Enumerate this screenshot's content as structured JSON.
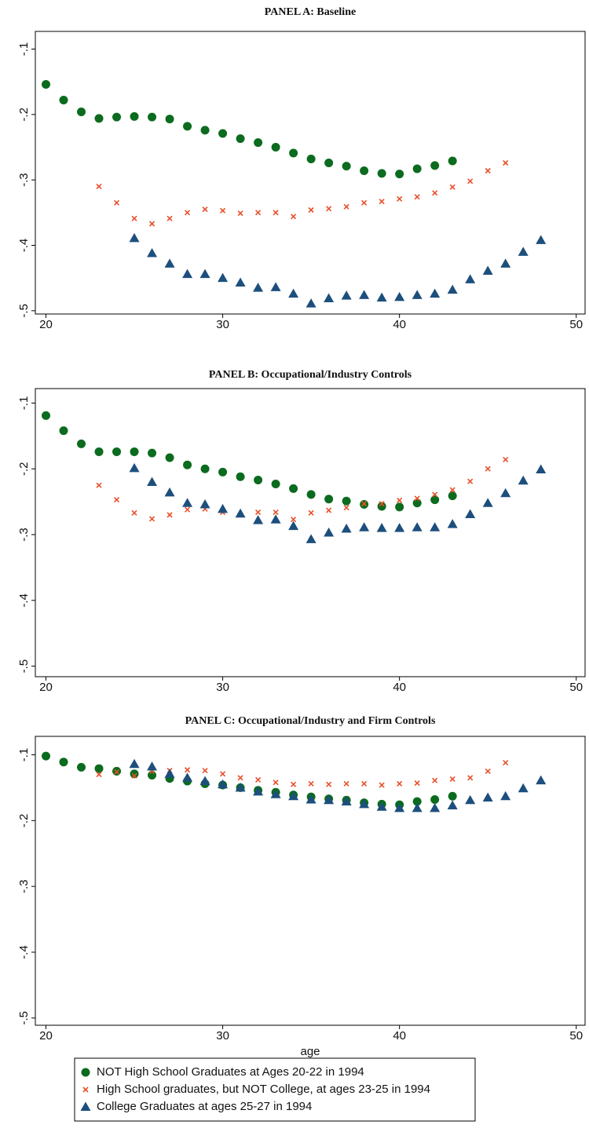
{
  "chart_data": [
    {
      "type": "scatter",
      "title": "PANEL A: Baseline",
      "x": [
        20,
        21,
        22,
        23,
        24,
        25,
        26,
        27,
        28,
        29,
        30,
        31,
        32,
        33,
        34,
        35,
        36,
        37,
        38,
        39,
        40,
        41,
        42,
        43,
        44,
        45,
        46,
        47,
        48
      ],
      "series": [
        {
          "color": "#0b6b1e",
          "marker": "circle",
          "values": [
            -0.154,
            -0.178,
            -0.196,
            -0.206,
            -0.204,
            -0.203,
            -0.204,
            -0.207,
            -0.218,
            -0.224,
            -0.229,
            -0.237,
            -0.243,
            -0.25,
            -0.259,
            -0.268,
            -0.274,
            -0.279,
            -0.286,
            -0.29,
            -0.291,
            -0.283,
            -0.278,
            -0.271,
            null,
            null,
            null,
            null,
            null
          ]
        },
        {
          "color": "#e8502a",
          "marker": "x",
          "values": [
            null,
            null,
            null,
            -0.31,
            -0.335,
            -0.359,
            -0.367,
            -0.359,
            -0.35,
            -0.345,
            -0.347,
            -0.351,
            -0.35,
            -0.35,
            -0.356,
            -0.346,
            -0.344,
            -0.341,
            -0.335,
            -0.333,
            -0.329,
            -0.326,
            -0.32,
            -0.311,
            -0.302,
            -0.286,
            -0.274,
            null,
            null
          ]
        },
        {
          "color": "#1d4f7c",
          "marker": "triangle",
          "values": [
            null,
            null,
            null,
            null,
            null,
            -0.389,
            -0.412,
            -0.428,
            -0.444,
            -0.444,
            -0.45,
            -0.457,
            -0.465,
            -0.464,
            -0.474,
            -0.489,
            -0.481,
            -0.477,
            -0.476,
            -0.48,
            -0.479,
            -0.476,
            -0.474,
            -0.468,
            -0.452,
            -0.439,
            -0.428,
            -0.41,
            -0.392
          ]
        }
      ],
      "xlim": [
        19.4,
        50.5
      ],
      "xticks": [
        20,
        30,
        40,
        50
      ],
      "ylim": [
        -0.505,
        -0.073
      ],
      "yticks": [
        {
          "value": -0.1,
          "label": "-.1"
        },
        {
          "value": -0.2,
          "label": "-.2"
        },
        {
          "value": -0.3,
          "label": "-.3"
        },
        {
          "value": -0.4,
          "label": "-.4"
        },
        {
          "value": -0.5,
          "label": "-.5"
        }
      ]
    },
    {
      "type": "scatter",
      "title": "PANEL B:  Occupational/Industry Controls",
      "x": [
        20,
        21,
        22,
        23,
        24,
        25,
        26,
        27,
        28,
        29,
        30,
        31,
        32,
        33,
        34,
        35,
        36,
        37,
        38,
        39,
        40,
        41,
        42,
        43,
        44,
        45,
        46,
        47,
        48
      ],
      "series": [
        {
          "color": "#0b6b1e",
          "marker": "circle",
          "values": [
            -0.119,
            -0.142,
            -0.162,
            -0.174,
            -0.174,
            -0.174,
            -0.176,
            -0.183,
            -0.194,
            -0.2,
            -0.205,
            -0.212,
            -0.217,
            -0.223,
            -0.23,
            -0.239,
            -0.246,
            -0.249,
            -0.254,
            -0.257,
            -0.258,
            -0.252,
            -0.247,
            -0.241,
            null,
            null,
            null,
            null,
            null
          ]
        },
        {
          "color": "#e8502a",
          "marker": "x",
          "values": [
            null,
            null,
            null,
            -0.225,
            -0.247,
            -0.267,
            -0.276,
            -0.27,
            -0.262,
            -0.261,
            -0.266,
            -0.27,
            -0.266,
            -0.266,
            -0.277,
            -0.267,
            -0.263,
            -0.259,
            -0.253,
            -0.253,
            -0.248,
            -0.245,
            -0.239,
            -0.232,
            -0.219,
            -0.2,
            -0.186,
            null,
            null
          ]
        },
        {
          "color": "#1d4f7c",
          "marker": "triangle",
          "values": [
            null,
            null,
            null,
            null,
            null,
            -0.199,
            -0.22,
            -0.236,
            -0.252,
            -0.254,
            -0.261,
            -0.268,
            -0.278,
            -0.277,
            -0.287,
            -0.307,
            -0.297,
            -0.291,
            -0.289,
            -0.29,
            -0.29,
            -0.289,
            -0.289,
            -0.284,
            -0.269,
            -0.252,
            -0.237,
            -0.218,
            -0.201
          ]
        }
      ],
      "xlim": [
        19.4,
        50.5
      ],
      "xticks": [
        20,
        30,
        40,
        50
      ],
      "ylim": [
        -0.516,
        -0.078
      ],
      "yticks": [
        {
          "value": -0.1,
          "label": "-.1"
        },
        {
          "value": -0.2,
          "label": "-.2"
        },
        {
          "value": -0.3,
          "label": "-.3"
        },
        {
          "value": -0.4,
          "label": "-.4"
        },
        {
          "value": -0.5,
          "label": "-.5"
        }
      ]
    },
    {
      "type": "scatter",
      "title": "PANEL C: Occupational/Industry and Firm Controls",
      "xlabel": "age",
      "x": [
        20,
        21,
        22,
        23,
        24,
        25,
        26,
        27,
        28,
        29,
        30,
        31,
        32,
        33,
        34,
        35,
        36,
        37,
        38,
        39,
        40,
        41,
        42,
        43,
        44,
        45,
        46,
        47,
        48
      ],
      "series": [
        {
          "name": "NOT High School Graduates at Ages 20-22 in 1994",
          "color": "#0b6b1e",
          "marker": "circle",
          "values": [
            -0.102,
            -0.111,
            -0.119,
            -0.121,
            -0.125,
            -0.129,
            -0.131,
            -0.136,
            -0.14,
            -0.144,
            -0.146,
            -0.15,
            -0.154,
            -0.157,
            -0.161,
            -0.164,
            -0.167,
            -0.169,
            -0.173,
            -0.175,
            -0.176,
            -0.171,
            -0.168,
            -0.163,
            null,
            null,
            null,
            null,
            null
          ]
        },
        {
          "name": "High School graduates, but NOT College, at ages 23-25 in 1994",
          "color": "#e8502a",
          "marker": "x",
          "values": [
            null,
            null,
            null,
            -0.13,
            -0.126,
            -0.132,
            -0.125,
            -0.124,
            -0.123,
            -0.124,
            -0.129,
            -0.135,
            -0.138,
            -0.142,
            -0.145,
            -0.144,
            -0.145,
            -0.144,
            -0.144,
            -0.146,
            -0.144,
            -0.143,
            -0.139,
            -0.137,
            -0.135,
            -0.125,
            -0.112,
            null,
            null
          ]
        },
        {
          "name": "College Graduates at ages 25-27 in 1994",
          "color": "#1d4f7c",
          "marker": "triangle",
          "values": [
            null,
            null,
            null,
            null,
            null,
            -0.114,
            -0.118,
            -0.129,
            -0.135,
            -0.14,
            -0.145,
            -0.15,
            -0.156,
            -0.16,
            -0.163,
            -0.168,
            -0.169,
            -0.171,
            -0.175,
            -0.179,
            -0.181,
            -0.181,
            -0.181,
            -0.177,
            -0.169,
            -0.165,
            -0.163,
            -0.151,
            -0.139
          ]
        }
      ],
      "xlim": [
        19.4,
        50.5
      ],
      "xticks": [
        20,
        30,
        40,
        50
      ],
      "ylim": [
        -0.511,
        -0.072
      ],
      "yticks": [
        {
          "value": -0.1,
          "label": "-.1"
        },
        {
          "value": -0.2,
          "label": "-.2"
        },
        {
          "value": -0.3,
          "label": "-.3"
        },
        {
          "value": -0.4,
          "label": "-.4"
        },
        {
          "value": -0.5,
          "label": "-.5"
        }
      ]
    }
  ]
}
